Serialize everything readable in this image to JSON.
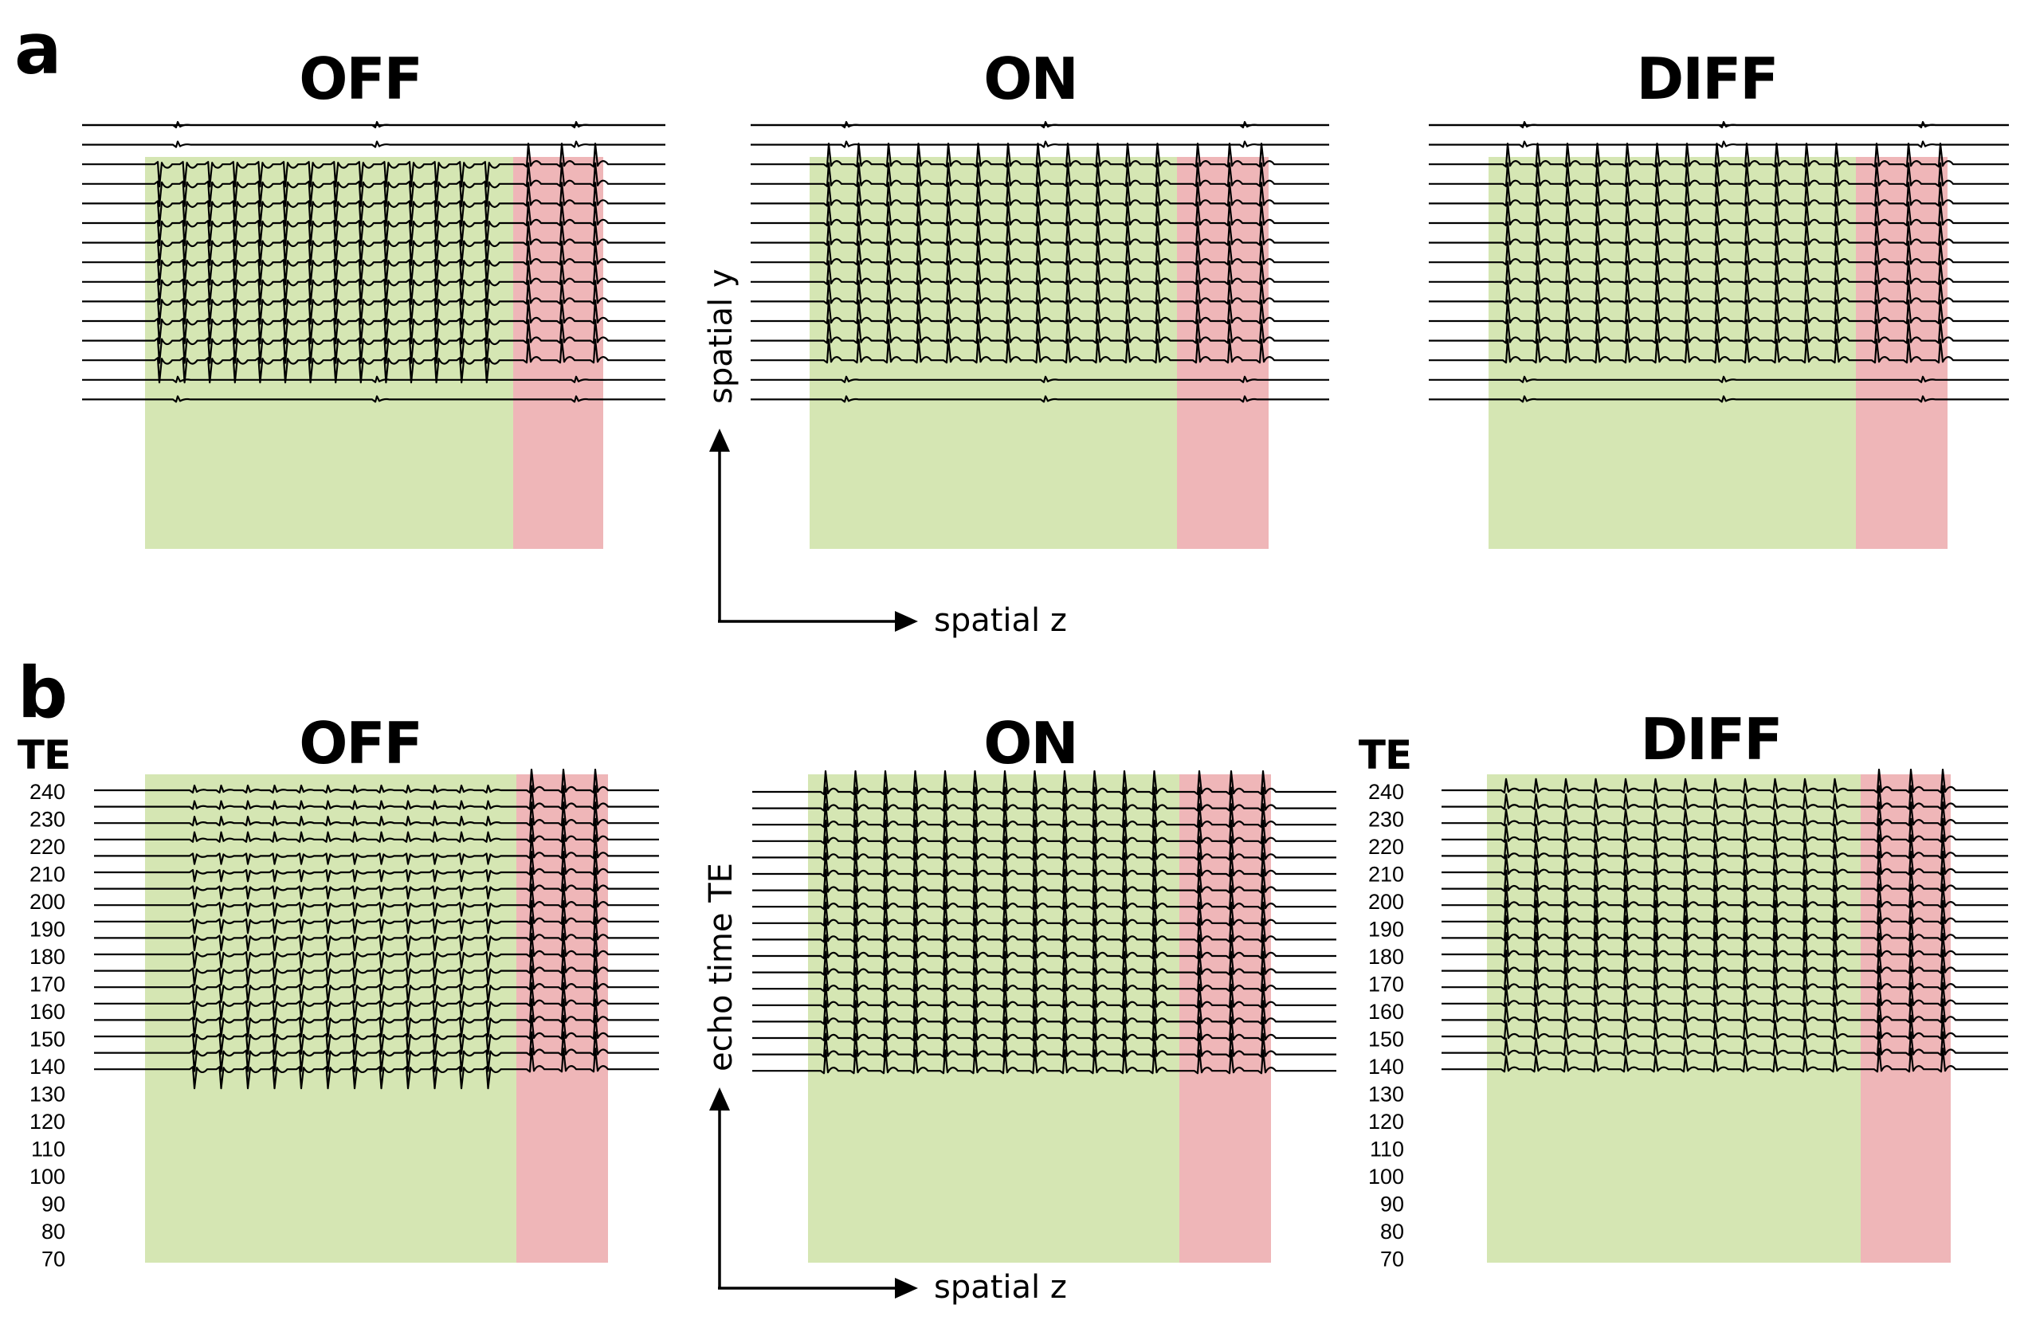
{
  "colors": {
    "green_region": "#d5e6b3",
    "red_region": "#efb6b8",
    "trace": "#000000"
  },
  "panel_a": {
    "letter": "a",
    "titles": [
      "OFF",
      "ON",
      "DIFF"
    ],
    "axis_y_label": "spatial y",
    "axis_x_label": "spatial z"
  },
  "panel_b": {
    "letter": "b",
    "titles": [
      "OFF",
      "ON",
      "DIFF"
    ],
    "te_header_left": "TE",
    "te_header_right": "TE",
    "te_values": [
      "240",
      "230",
      "220",
      "210",
      "200",
      "190",
      "180",
      "170",
      "160",
      "150",
      "140",
      "130",
      "120",
      "110",
      "100",
      "90",
      "80",
      "70"
    ],
    "axis_y_label": "echo time TE",
    "axis_x_label": "spatial z"
  }
}
